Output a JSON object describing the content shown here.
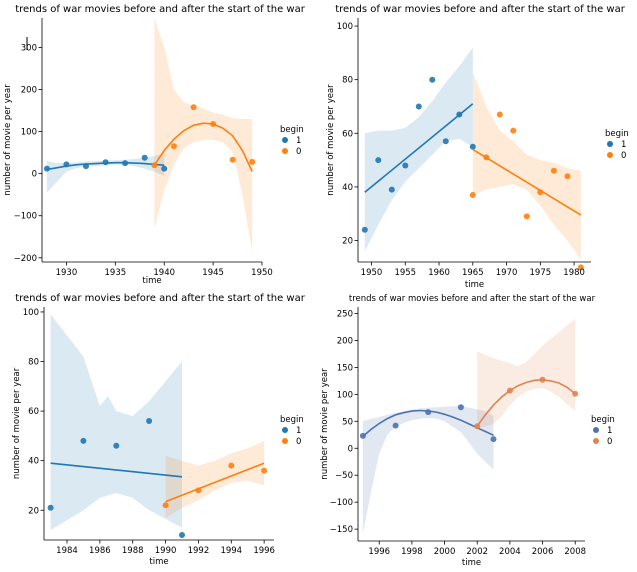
{
  "chart_data": [
    {
      "type": "scatter",
      "title": "trends of war movies before and after the start of the war",
      "xlabel": "time",
      "ylabel": "number of movie per year",
      "xlim": [
        1927.5,
        1950
      ],
      "ylim": [
        -210,
        370
      ],
      "xticks": [
        1930,
        1935,
        1940,
        1945,
        1950
      ],
      "yticks": [
        -200,
        -100,
        0,
        100,
        200,
        300
      ],
      "legend": {
        "title": "begin",
        "placement": "right",
        "entries": [
          "1",
          "0"
        ]
      },
      "series": [
        {
          "name": "1",
          "color": "#1f77b4",
          "points": [
            [
              1928,
              12
            ],
            [
              1930,
              22
            ],
            [
              1932,
              18
            ],
            [
              1934,
              27
            ],
            [
              1936,
              25
            ],
            [
              1938,
              38
            ],
            [
              1940,
              12
            ]
          ],
          "fit": {
            "order": 2,
            "x": [
              1928,
              1929,
              1930,
              1931,
              1932,
              1933,
              1934,
              1935,
              1936,
              1937,
              1938,
              1939,
              1940
            ],
            "y": [
              10,
              14,
              18,
              21,
              23,
              24,
              25,
              26,
              26,
              25,
              24,
              22,
              20
            ]
          },
          "band": {
            "upper": [
              30,
              25,
              25,
              27,
              29,
              30,
              31,
              32,
              33,
              35,
              38,
              42,
              48
            ],
            "lower": [
              -45,
              -20,
              5,
              13,
              17,
              18,
              20,
              21,
              21,
              18,
              12,
              5,
              -5
            ]
          }
        },
        {
          "name": "0",
          "color": "#ff7f0e",
          "points": [
            [
              1939,
              20
            ],
            [
              1941,
              65
            ],
            [
              1943,
              158
            ],
            [
              1945,
              118
            ],
            [
              1947,
              33
            ],
            [
              1949,
              28
            ]
          ],
          "fit": {
            "order": 2,
            "x": [
              1939,
              1940,
              1941,
              1942,
              1943,
              1944,
              1945,
              1946,
              1947,
              1948,
              1949
            ],
            "y": [
              20,
              55,
              82,
              102,
              115,
              120,
              118,
              108,
              90,
              55,
              5
            ]
          },
          "band": {
            "upper": [
              370,
              300,
              200,
              170,
              160,
              155,
              145,
              140,
              132,
              130,
              130
            ],
            "lower": [
              -130,
              -40,
              20,
              60,
              75,
              80,
              80,
              75,
              50,
              -50,
              -185
            ]
          }
        }
      ]
    },
    {
      "type": "scatter",
      "title": "trends of war movies before and after the start of the war",
      "xlabel": "time",
      "ylabel": "number of movie per year",
      "xlim": [
        1948,
        1982.5
      ],
      "ylim": [
        12,
        103
      ],
      "xticks": [
        1950,
        1955,
        1960,
        1965,
        1970,
        1975,
        1980
      ],
      "yticks": [
        20,
        40,
        60,
        80,
        100
      ],
      "legend": {
        "title": "begin",
        "placement": "right",
        "entries": [
          "1",
          "0"
        ]
      },
      "series": [
        {
          "name": "1",
          "color": "#1f77b4",
          "points": [
            [
              1949,
              24
            ],
            [
              1951,
              50
            ],
            [
              1953,
              39
            ],
            [
              1955,
              48
            ],
            [
              1957,
              70
            ],
            [
              1959,
              80
            ],
            [
              1961,
              57
            ],
            [
              1963,
              67
            ],
            [
              1965,
              55
            ]
          ],
          "fit": {
            "order": 1,
            "x": [
              1949,
              1965
            ],
            "y": [
              38,
              71
            ]
          },
          "band": {
            "x": [
              1949,
              1951,
              1953,
              1955,
              1957,
              1959,
              1961,
              1963,
              1965
            ],
            "upper": [
              60,
              61,
              61,
              62,
              66,
              72,
              79,
              85,
              92
            ],
            "lower": [
              16,
              26,
              35,
              42,
              47,
              52,
              57,
              58,
              55
            ]
          }
        },
        {
          "name": "0",
          "color": "#ff7f0e",
          "points": [
            [
              1965,
              37
            ],
            [
              1967,
              51
            ],
            [
              1969,
              67
            ],
            [
              1971,
              61
            ],
            [
              1973,
              29
            ],
            [
              1975,
              38
            ],
            [
              1977,
              46
            ],
            [
              1979,
              44
            ],
            [
              1981,
              10
            ]
          ],
          "fit": {
            "order": 1,
            "x": [
              1965,
              1981
            ],
            "y": [
              54,
              29.5
            ]
          },
          "band": {
            "x": [
              1965,
              1967,
              1969,
              1971,
              1973,
              1975,
              1977,
              1979,
              1981
            ],
            "upper": [
              83,
              70,
              61,
              57,
              52,
              50,
              49,
              47,
              46
            ],
            "lower": [
              37,
              39,
              40,
              41,
              39,
              33,
              26,
              20,
              13
            ]
          }
        }
      ]
    },
    {
      "type": "scatter",
      "title": "trends of war movies before and after the start of the war",
      "xlabel": "time",
      "ylabel": "number of movie per year",
      "xlim": [
        1982.6,
        1996.6
      ],
      "ylim": [
        8,
        102
      ],
      "xticks": [
        1984,
        1986,
        1988,
        1990,
        1992,
        1994,
        1996
      ],
      "yticks": [
        20,
        40,
        60,
        80,
        100
      ],
      "legend": {
        "title": "begin",
        "placement": "right",
        "entries": [
          "1",
          "0"
        ]
      },
      "series": [
        {
          "name": "1",
          "color": "#1f77b4",
          "points": [
            [
              1983,
              21
            ],
            [
              1985,
              48
            ],
            [
              1987,
              46
            ],
            [
              1989,
              56
            ],
            [
              1991,
              10
            ]
          ],
          "fit": {
            "order": 1,
            "x": [
              1983,
              1991
            ],
            "y": [
              39,
              33.5
            ]
          },
          "band": {
            "x": [
              1983,
              1985,
              1986,
              1986.5,
              1987,
              1988,
              1989,
              1991
            ],
            "upper": [
              99,
              82,
              62,
              66,
              60,
              58,
              64,
              80
            ],
            "lower": [
              12,
              20,
              25,
              26,
              27,
              25,
              20,
              13
            ]
          }
        },
        {
          "name": "0",
          "color": "#ff7f0e",
          "points": [
            [
              1990,
              22
            ],
            [
              1992,
              28
            ],
            [
              1994,
              38
            ],
            [
              1996,
              36
            ]
          ],
          "fit": {
            "order": 1,
            "x": [
              1990,
              1996
            ],
            "y": [
              23.5,
              39
            ]
          },
          "band": {
            "x": [
              1990,
              1991,
              1992,
              1993,
              1994,
              1995,
              1996
            ],
            "upper": [
              42,
              40,
              38,
              40,
              43,
              45,
              48
            ],
            "lower": [
              17,
              21,
              24,
              28,
              31,
              32,
              30
            ]
          }
        }
      ]
    },
    {
      "type": "scatter",
      "title": "trends of war movies before and after the start of the war",
      "xlabel": "time",
      "ylabel": "number of movie per year",
      "xlim": [
        1994.7,
        2008.6
      ],
      "ylim": [
        -172,
        262
      ],
      "xticks": [
        1996,
        1998,
        2000,
        2002,
        2004,
        2006,
        2008
      ],
      "yticks": [
        -150,
        -100,
        -50,
        0,
        50,
        100,
        150,
        200,
        250
      ],
      "legend": {
        "title": "begin",
        "placement": "right",
        "entries": [
          "1",
          "0"
        ]
      },
      "series": [
        {
          "name": "1",
          "color": "#4c72b0",
          "points": [
            [
              1995,
              23
            ],
            [
              1997,
              42
            ],
            [
              1999,
              67
            ],
            [
              2001,
              76
            ],
            [
              2003,
              17
            ]
          ],
          "fit": {
            "order": 2,
            "x": [
              1995,
              1995.5,
              1996,
              1996.5,
              1997,
              1997.5,
              1998,
              1998.5,
              1999,
              1999.5,
              2000,
              2000.5,
              2001,
              2001.5,
              2002,
              2002.5,
              2003
            ],
            "y": [
              22,
              35,
              46,
              55,
              62,
              66,
              69,
              70,
              69,
              67,
              63,
              58,
              52,
              45,
              38,
              31,
              24
            ]
          },
          "band": {
            "upper": [
              50,
              55,
              58,
              62,
              66,
              69,
              72,
              74,
              75,
              76,
              77,
              78,
              79,
              75,
              72,
              69,
              60
            ],
            "lower": [
              -158,
              -80,
              -10,
              25,
              40,
              47,
              52,
              55,
              56,
              55,
              50,
              40,
              30,
              10,
              -10,
              -25,
              -40
            ]
          }
        },
        {
          "name": "0",
          "color": "#dd8452",
          "points": [
            [
              2002,
              41
            ],
            [
              2004,
              107
            ],
            [
              2006,
              127
            ],
            [
              2008,
              101
            ]
          ],
          "fit": {
            "order": 2,
            "x": [
              2002,
              2002.5,
              2003,
              2003.5,
              2004,
              2004.5,
              2005,
              2005.5,
              2006,
              2006.5,
              2007,
              2007.5,
              2008
            ],
            "y": [
              41,
              62,
              80,
              95,
              107,
              116,
              122,
              126,
              127,
              125,
              121,
              113,
              101
            ]
          },
          "band": {
            "upper": [
              180,
              173,
              167,
              162,
              158,
              152,
              160,
              175,
              190,
              203,
              215,
              228,
              240
            ],
            "lower": [
              38,
              40,
              45,
              60,
              80,
              95,
              105,
              110,
              112,
              105,
              95,
              82,
              70
            ]
          }
        }
      ]
    }
  ]
}
